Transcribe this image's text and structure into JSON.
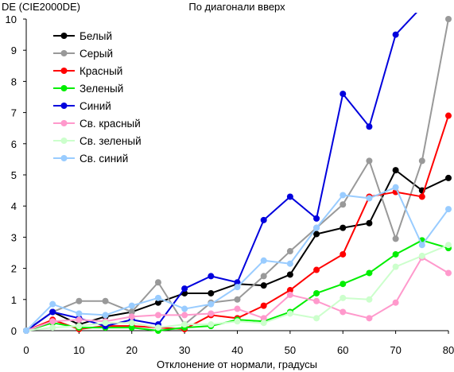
{
  "chart_data": {
    "type": "line",
    "title": "По диагонали вверх",
    "ylabel": "DE (CIE2000DE)",
    "xlabel": "Отклонение от нормали, градусы",
    "xlim": [
      0,
      80
    ],
    "ylim": [
      0,
      10
    ],
    "x_ticks": [
      0,
      10,
      20,
      30,
      40,
      50,
      60,
      70,
      80
    ],
    "y_ticks": [
      0,
      1,
      2,
      3,
      4,
      5,
      6,
      7,
      8,
      9,
      10
    ],
    "grid": false,
    "legend_position": "top-left",
    "x": [
      0,
      5,
      10,
      15,
      20,
      25,
      30,
      35,
      40,
      45,
      50,
      55,
      60,
      65,
      70,
      75,
      80
    ],
    "series": [
      {
        "name": "Белый",
        "color": "#000000",
        "values": [
          0,
          0.6,
          0.2,
          0.45,
          0.6,
          0.9,
          1.2,
          1.2,
          1.5,
          1.45,
          1.8,
          3.1,
          3.3,
          3.45,
          5.15,
          4.5,
          4.9
        ]
      },
      {
        "name": "Серый",
        "color": "#999999",
        "values": [
          0,
          0.6,
          0.95,
          0.95,
          0.6,
          1.55,
          0.2,
          0.9,
          1.0,
          1.75,
          2.55,
          3.3,
          4.05,
          5.45,
          2.95,
          5.45,
          10.0
        ]
      },
      {
        "name": "Красный",
        "color": "#ff0000",
        "values": [
          0,
          0.35,
          0.05,
          0.15,
          0.15,
          0.1,
          0.05,
          0.5,
          0.4,
          0.8,
          1.3,
          1.95,
          2.45,
          4.3,
          4.45,
          4.3,
          6.9
        ]
      },
      {
        "name": "Зеленый",
        "color": "#00ee00",
        "values": [
          0,
          0.25,
          0.1,
          0.1,
          0.1,
          0.0,
          0.1,
          0.15,
          0.35,
          0.3,
          0.6,
          1.2,
          1.5,
          1.85,
          2.45,
          2.9,
          2.65
        ]
      },
      {
        "name": "Синий",
        "color": "#0000dd",
        "values": [
          0,
          0.6,
          0.4,
          0.15,
          0.35,
          0.2,
          1.35,
          1.75,
          1.55,
          3.55,
          4.3,
          3.6,
          7.6,
          6.55,
          9.5,
          10.4,
          null
        ]
      },
      {
        "name": "Св. красный",
        "color": "#ff99cc",
        "values": [
          0,
          0.3,
          0.35,
          0.3,
          0.45,
          0.5,
          0.5,
          0.55,
          0.7,
          0.4,
          1.15,
          0.95,
          0.6,
          0.4,
          0.9,
          2.35,
          1.85
        ]
      },
      {
        "name": "Св. зеленый",
        "color": "#ccffcc",
        "values": [
          0,
          0.1,
          0.15,
          0.25,
          0.25,
          0.1,
          0.2,
          0.2,
          0.3,
          0.25,
          0.55,
          0.4,
          1.05,
          1.0,
          2.05,
          2.4,
          2.75
        ]
      },
      {
        "name": "Св. синий",
        "color": "#99ccff",
        "values": [
          0,
          0.85,
          0.55,
          0.5,
          0.8,
          1.05,
          0.7,
          0.85,
          1.4,
          2.25,
          2.15,
          3.3,
          4.35,
          4.25,
          4.6,
          2.75,
          3.9
        ]
      }
    ]
  }
}
